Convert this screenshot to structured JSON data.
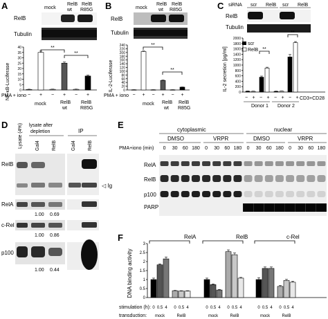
{
  "panels": {
    "A": {
      "label": "A",
      "blot_labels": [
        "RelB",
        "Tubulin"
      ],
      "lane_top": [
        "mock",
        "RelB",
        "RelB"
      ],
      "lane_bottom": [
        "",
        "wt",
        "R85G"
      ],
      "ylabel": "NF-κB-Luciferase",
      "stim_label": "PMA + iono",
      "signs": [
        "−",
        "+",
        "−",
        "+",
        "−",
        "+"
      ],
      "groups": [
        "mock",
        "RelB\nwt",
        "RelB\nR85G"
      ],
      "sig": [
        "**",
        "**"
      ]
    },
    "B": {
      "label": "B",
      "blot_labels": [
        "RelB",
        "Tubulin"
      ],
      "lane_top": [
        "mock",
        "RelB",
        "RelB"
      ],
      "lane_bottom": [
        "",
        "wt",
        "R85G"
      ],
      "ylabel": "IL-2-Luciferase",
      "stim_label": "PMA + iono",
      "signs": [
        "−",
        "+",
        "−",
        "+",
        "−",
        "+"
      ],
      "groups": [
        "mock",
        "RelB\nwt",
        "RelB\nR85G"
      ],
      "sig": [
        "**",
        "**"
      ]
    },
    "C": {
      "label": "C",
      "sirna_label": "siRNA",
      "lane_labels": [
        "scr",
        "RelB",
        "scr",
        "RelB"
      ],
      "blot_labels": [
        "RelB",
        "Tubulin"
      ],
      "ylabel": "IL-2 secretion [pg/ml]",
      "legend": [
        "scr",
        "RelB"
      ],
      "stim_label": "CD3+CD28",
      "signs": [
        "−",
        "+",
        "−",
        "+",
        "−",
        "+",
        "−",
        "+"
      ],
      "groups": [
        "Donor 1",
        "Donor 2"
      ],
      "sig": [
        "**",
        "**"
      ]
    },
    "D": {
      "label": "D",
      "col_lysate": "Lysate (4%)",
      "col_depletion": "lysate after depletion",
      "col_ip": "IP",
      "lanes": [
        "Gal4",
        "RelB",
        "Gal4",
        "RelB"
      ],
      "rows": [
        {
          "name": "RelB",
          "vals": []
        },
        {
          "name": "RelA",
          "vals": [
            "1.00",
            "0.69"
          ]
        },
        {
          "name": "c-Rel",
          "vals": [
            "1.00",
            "0.86"
          ]
        },
        {
          "name": "p100",
          "vals": [
            "1.00",
            "0.44"
          ]
        }
      ],
      "ig_label": "Ig"
    },
    "E": {
      "label": "E",
      "fraction_labels": [
        "cytoplasmic",
        "nuclear"
      ],
      "treat_labels": [
        "DMSO",
        "VRPR",
        "DMSO",
        "VRPR"
      ],
      "time_label": "PMA+iono (min)",
      "times": [
        "0",
        "30",
        "60",
        "180",
        "0",
        "30",
        "60",
        "180",
        "0",
        "30",
        "60",
        "180",
        "0",
        "30",
        "60",
        "180"
      ],
      "blot_labels": [
        "RelA",
        "RelB",
        "p100",
        "PARP"
      ]
    },
    "F": {
      "label": "F",
      "stim_label": "stimulation (h):",
      "trans_label": "transduction:",
      "stim_ticks": [
        "0",
        "0.5",
        "4",
        "0",
        "0.5",
        "4"
      ],
      "trans_ticks": [
        "mock",
        "RelB"
      ]
    }
  },
  "chart_data": [
    {
      "type": "bar",
      "panel": "A",
      "ylabel": "NF-κB-Luciferase",
      "ylim": [
        0,
        40
      ],
      "yticks": [
        "0",
        "5",
        "10",
        "15",
        "20",
        "25",
        "30",
        "35",
        "40"
      ],
      "categories": [
        "mock −",
        "mock +",
        "RelB wt −",
        "RelB wt +",
        "RelB R85G −",
        "RelB R85G +"
      ],
      "values": [
        0.5,
        35,
        0.6,
        25,
        0.6,
        13
      ],
      "errors": [
        0.2,
        1.2,
        0.2,
        1.0,
        0.2,
        0.8
      ]
    },
    {
      "type": "bar",
      "panel": "B",
      "ylabel": "IL-2-Luciferase",
      "ylim": [
        0,
        240
      ],
      "yticks": [
        "0",
        "20",
        "40",
        "60",
        "80",
        "100",
        "120",
        "140",
        "160",
        "180",
        "200",
        "220",
        "240"
      ],
      "categories": [
        "mock −",
        "mock +",
        "RelB wt −",
        "RelB wt +",
        "RelB R85G −",
        "RelB R85G +"
      ],
      "values": [
        1,
        205,
        1,
        51,
        1,
        15
      ],
      "errors": [
        0.5,
        3,
        0.5,
        2,
        0.5,
        1
      ]
    },
    {
      "type": "bar",
      "panel": "C",
      "ylabel": "IL-2 secretion [pg/ml]",
      "ylim": [
        0,
        2000
      ],
      "yticks": [
        "0",
        "200",
        "400",
        "600",
        "800",
        "1000",
        "1200",
        "1400",
        "1600",
        "1800",
        "2000"
      ],
      "categories": [
        "Donor 1 −",
        "Donor 1 +",
        "Donor 2 −",
        "Donor 2 +"
      ],
      "series": [
        {
          "name": "scr",
          "color": "#000000",
          "values": [
            30,
            550,
            25,
            1300
          ],
          "errors": [
            8,
            40,
            8,
            90
          ]
        },
        {
          "name": "RelB",
          "color": "#ffffff",
          "values": [
            25,
            890,
            30,
            1830
          ],
          "errors": [
            8,
            30,
            8,
            40
          ]
        }
      ]
    },
    {
      "type": "bar",
      "panel": "F",
      "ylabel": "DNA binding activity",
      "ylim": [
        0,
        3
      ],
      "yticks": [
        "0",
        "0.5",
        "1",
        "1.5",
        "2",
        "2.5",
        "3"
      ],
      "groups": [
        "RelA",
        "RelB",
        "c-Rel"
      ],
      "categories": [
        "mock 0",
        "mock 0.5",
        "mock 4",
        "RelB 0",
        "RelB 0.5",
        "RelB 4"
      ],
      "series": [
        {
          "name": "RelA",
          "values": [
            1.0,
            1.82,
            2.15,
            0.38,
            0.36,
            0.36
          ],
          "errors": [
            0.08,
            0.05,
            0.1,
            0.02,
            0.02,
            0.02
          ]
        },
        {
          "name": "RelB",
          "values": [
            1.0,
            0.72,
            0.42,
            2.55,
            2.38,
            1.08
          ],
          "errors": [
            0.08,
            0.04,
            0.03,
            0.1,
            0.1,
            0.04
          ]
        },
        {
          "name": "c-Rel",
          "values": [
            1.0,
            1.62,
            1.62,
            0.62,
            0.95,
            0.85
          ],
          "errors": [
            0.1,
            0.08,
            0.08,
            0.05,
            0.06,
            0.06
          ]
        }
      ],
      "colors": [
        "#000000",
        "#555555",
        "#777777",
        "#aaaaaa",
        "#c8c8c8",
        "#e8e8e8"
      ]
    }
  ]
}
